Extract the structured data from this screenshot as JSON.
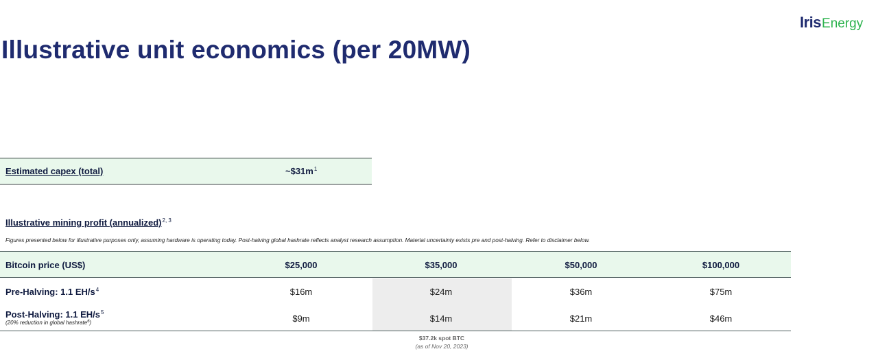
{
  "logo": {
    "part1": "Iris",
    "part2": "Energy"
  },
  "title": "Illustrative unit economics (per 20MW)",
  "capex": {
    "label": "Estimated capex (total)",
    "value": "~$31m",
    "footnote": "1"
  },
  "profit_section": {
    "heading": "Illustrative mining profit (annualized)",
    "footnote": "2, 3",
    "disclaimer": "Figures presented below for illustrative purposes only, assuming hardware  is operating today.  Post-halving global hashrate reflects analyst research assumption. Material uncertainty exists pre and post-halving. Refer to  disclaimer below."
  },
  "table": {
    "header_label": "Bitcoin price (US$)",
    "columns": [
      "$25,000",
      "$35,000",
      "$50,000",
      "$100,000"
    ],
    "rows": [
      {
        "label": "Pre-Halving: 1.1 EH/s",
        "footnote": "4",
        "values": [
          "$16m",
          "$24m",
          "$36m",
          "$75m"
        ]
      },
      {
        "label": "Post-Halving: 1.1 EH/s",
        "footnote": "5",
        "sublabel": "(20% reduction in global hashrate",
        "sublabel_footnote": "6",
        "sublabel_end": ")",
        "values": [
          "$9m",
          "$14m",
          "$21m",
          "$46m"
        ]
      }
    ]
  },
  "spot_note": {
    "line1": "$37.2k spot BTC",
    "line2": "(as of Nov 20, 2023)"
  }
}
